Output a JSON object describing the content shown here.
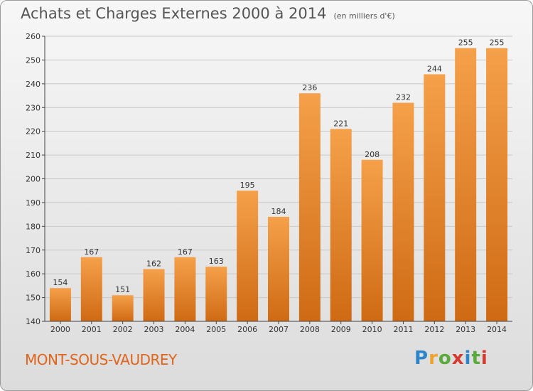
{
  "header": {
    "title": "Achats et Charges Externes 2000 à 2014",
    "subtitle": "(en milliers d'€)"
  },
  "footer": {
    "commune": "MONT-SOUS-VAUDREY"
  },
  "logo": {
    "text": "Proxiti",
    "letters": [
      "P",
      "r",
      "o",
      "x",
      "i",
      "t",
      "i"
    ],
    "colors": [
      "#2e86c9",
      "#f0a22e",
      "#5aaa3c",
      "#d63a2e",
      "#2e86c9",
      "#5aaa3c",
      "#d63a2e"
    ]
  },
  "colors": {
    "bar_top": "#f5a04a",
    "bar_bottom": "#cf6a14",
    "commune": "#e0651a"
  },
  "chart_data": {
    "type": "bar",
    "title": "Achats et Charges Externes 2000 à 2014",
    "subtitle": "(en milliers d'€)",
    "categories": [
      "2000",
      "2001",
      "2002",
      "2003",
      "2004",
      "2005",
      "2006",
      "2007",
      "2008",
      "2009",
      "2010",
      "2011",
      "2012",
      "2013",
      "2014"
    ],
    "values": [
      154,
      167,
      151,
      162,
      167,
      163,
      195,
      184,
      236,
      221,
      208,
      232,
      244,
      255,
      255
    ],
    "ylim": [
      140,
      260
    ],
    "yticks": [
      140,
      150,
      160,
      170,
      180,
      190,
      200,
      210,
      220,
      230,
      240,
      250,
      260
    ],
    "grid": true,
    "xlabel": "",
    "ylabel": ""
  }
}
